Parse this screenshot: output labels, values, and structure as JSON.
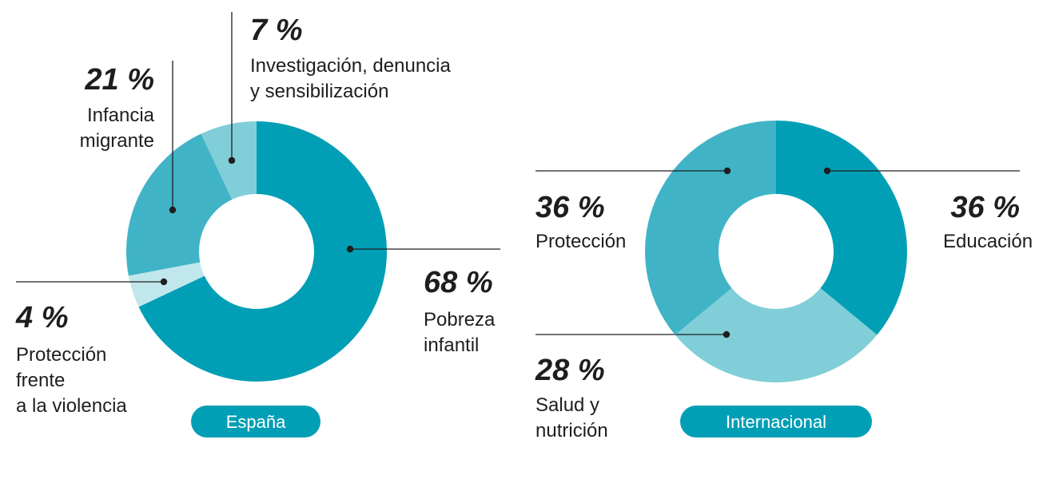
{
  "colors": {
    "dark": "#009fb5",
    "mid": "#40b4c6",
    "light": "#80ced8",
    "pale": "#c0e7ec",
    "pill": "#009fb5",
    "text": "#1e1e1e",
    "line": "#1e1e1e"
  },
  "chart_data": [
    {
      "type": "pie",
      "title": "España",
      "slices": [
        {
          "name": "Pobreza infantil",
          "value": 68,
          "value_label": "68 %",
          "label_lines": [
            "Pobreza",
            "infantil"
          ],
          "color": "#009fb5"
        },
        {
          "name": "Protección frente a la violencia",
          "value": 4,
          "value_label": "4 %",
          "label_lines": [
            "Protección",
            "frente",
            "a la violencia"
          ],
          "color": "#c0e7ec"
        },
        {
          "name": "Infancia migrante",
          "value": 21,
          "value_label": "21 %",
          "label_lines": [
            "Infancia",
            "migrante"
          ],
          "color": "#40b4c6"
        },
        {
          "name": "Investigación, denuncia y sensibilización",
          "value": 7,
          "value_label": "7 %",
          "label_lines": [
            "Investigación, denuncia",
            "y sensibilización"
          ],
          "color": "#80ced8"
        }
      ]
    },
    {
      "type": "pie",
      "title": "Internacional",
      "slices": [
        {
          "name": "Educación",
          "value": 36,
          "value_label": "36 %",
          "label_lines": [
            "Educación"
          ],
          "color": "#009fb5"
        },
        {
          "name": "Salud y nutrición",
          "value": 28,
          "value_label": "28 %",
          "label_lines": [
            "Salud y",
            "nutrición"
          ],
          "color": "#80ced8"
        },
        {
          "name": "Protección",
          "value": 36,
          "value_label": "36 %",
          "label_lines": [
            "Protección"
          ],
          "color": "#40b4c6"
        }
      ]
    }
  ]
}
